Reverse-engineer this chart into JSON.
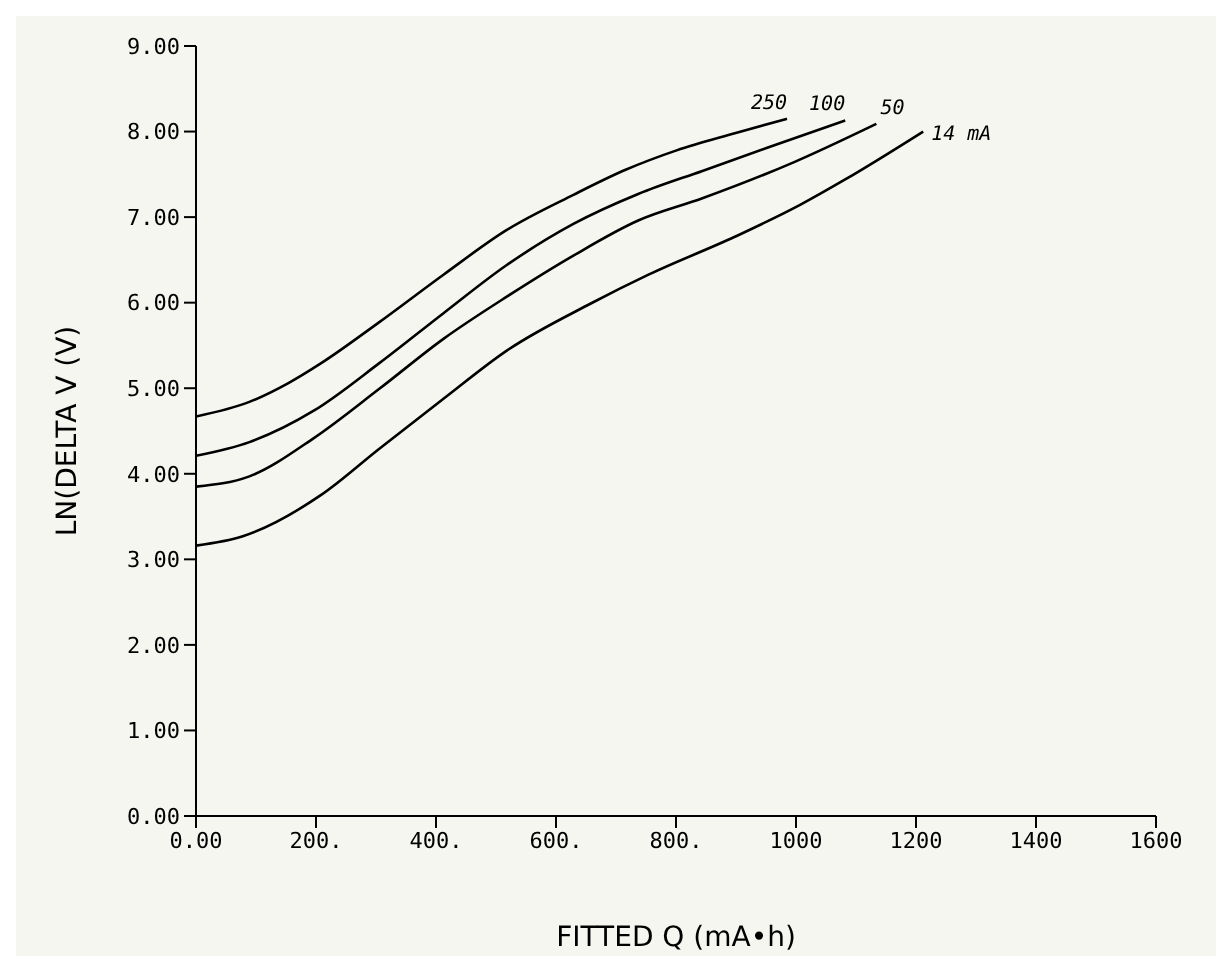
{
  "chart_data": {
    "type": "line",
    "xlabel": "FITTED Q (mA•h)",
    "ylabel": "LN(DELTA V (V)",
    "xlim": [
      0,
      1600
    ],
    "xticks": [
      {
        "value": 0,
        "label": "0.00"
      },
      {
        "value": 200,
        "label": "200."
      },
      {
        "value": 400,
        "label": "400."
      },
      {
        "value": 600,
        "label": "600."
      },
      {
        "value": 800,
        "label": "800."
      },
      1000,
      1200,
      1400,
      1600
    ],
    "ylim": [
      0,
      9
    ],
    "yticks": [
      {
        "value": 0,
        "label": "0.00"
      },
      {
        "value": 1,
        "label": "1.00"
      },
      {
        "value": 2,
        "label": "2.00"
      },
      {
        "value": 3,
        "label": "3.00"
      },
      {
        "value": 4,
        "label": "4.00"
      },
      {
        "value": 5,
        "label": "5.00"
      },
      {
        "value": 6,
        "label": "6.00"
      },
      {
        "value": 7,
        "label": "7.00"
      },
      {
        "value": 8,
        "label": "8.00"
      },
      {
        "value": 9,
        "label": "9.00"
      }
    ],
    "grid": false,
    "legend": false,
    "marker": "none",
    "line_style": "solid",
    "series": [
      {
        "name": "250",
        "color": "#000000",
        "x": [
          0,
          89,
          154,
          208,
          305,
          413,
          518,
          629,
          715,
          801,
          898,
          985
        ],
        "values": [
          4.67,
          4.84,
          5.06,
          5.29,
          5.77,
          6.33,
          6.85,
          7.26,
          7.55,
          7.78,
          7.98,
          8.15
        ]
      },
      {
        "name": "100",
        "color": "#000000",
        "x": [
          0,
          89,
          197,
          305,
          413,
          518,
          629,
          737,
          844,
          952,
          1082
        ],
        "values": [
          4.21,
          4.37,
          4.74,
          5.29,
          5.88,
          6.44,
          6.92,
          7.27,
          7.54,
          7.81,
          8.13
        ]
      },
      {
        "name": "50",
        "color": "#000000",
        "x": [
          0,
          89,
          197,
          305,
          413,
          518,
          629,
          737,
          844,
          996,
          1134
        ],
        "values": [
          3.85,
          3.97,
          4.42,
          4.99,
          5.58,
          6.07,
          6.55,
          6.96,
          7.22,
          7.64,
          8.09
        ]
      },
      {
        "name": "14 mA",
        "color": "#000000",
        "x": [
          0,
          78,
          208,
          305,
          413,
          518,
          658,
          755,
          898,
          1006,
          1082,
          1212
        ],
        "values": [
          3.16,
          3.27,
          3.75,
          4.29,
          4.88,
          5.44,
          5.99,
          6.33,
          6.77,
          7.14,
          7.44,
          8.0
        ]
      }
    ]
  }
}
